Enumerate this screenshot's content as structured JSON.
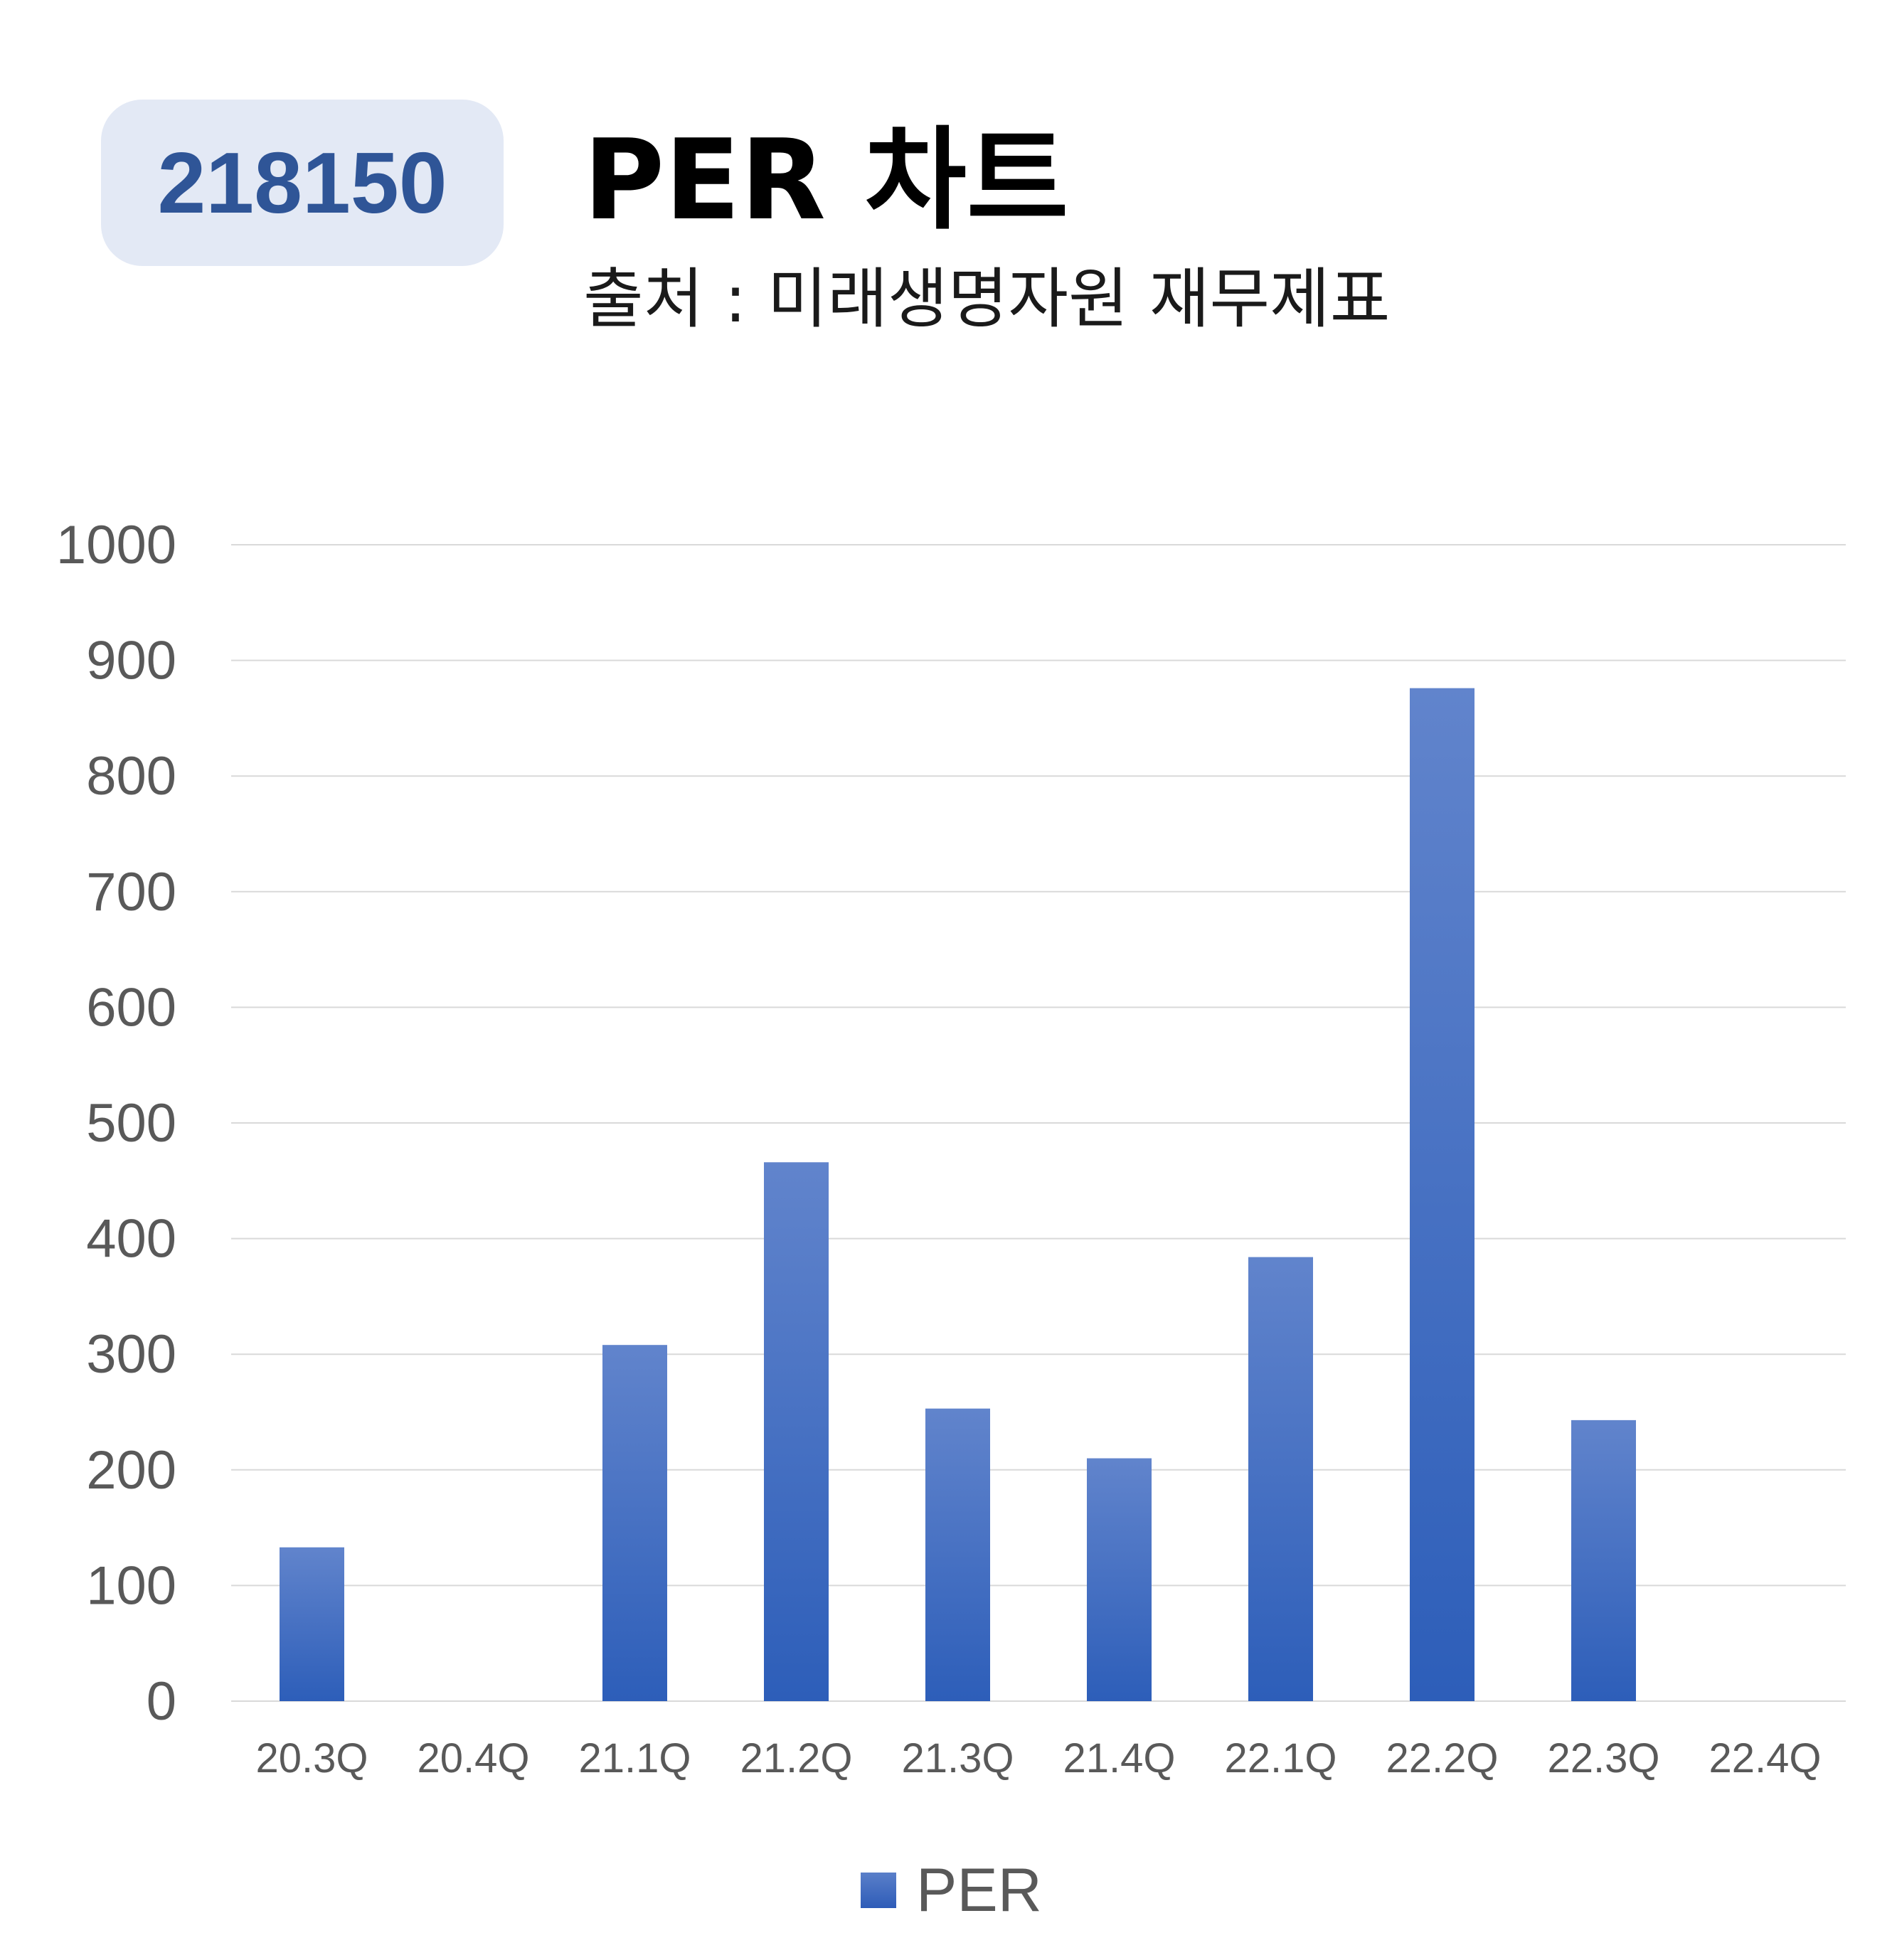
{
  "badge": {
    "code": "218150"
  },
  "title": "PER 차트",
  "subtitle": "출처 : 미래생명자원 재무제표",
  "chart_data": {
    "type": "bar",
    "categories": [
      "20.3Q",
      "20.4Q",
      "21.1Q",
      "21.2Q",
      "21.3Q",
      "21.4Q",
      "22.1Q",
      "22.2Q",
      "22.3Q",
      "22.4Q"
    ],
    "series": [
      {
        "name": "PER",
        "values": [
          133,
          0,
          308,
          466,
          253,
          210,
          384,
          876,
          243,
          0
        ]
      }
    ],
    "ylim": [
      0,
      1000
    ],
    "yticks": [
      0,
      100,
      200,
      300,
      400,
      500,
      600,
      700,
      800,
      900,
      1000
    ],
    "grid": true,
    "legend": "bottom",
    "colors": {
      "bar_top": "#6184cc",
      "bar_bottom": "#2d5eb9",
      "grid": "#d9d9d9",
      "tick": "#595959"
    }
  }
}
